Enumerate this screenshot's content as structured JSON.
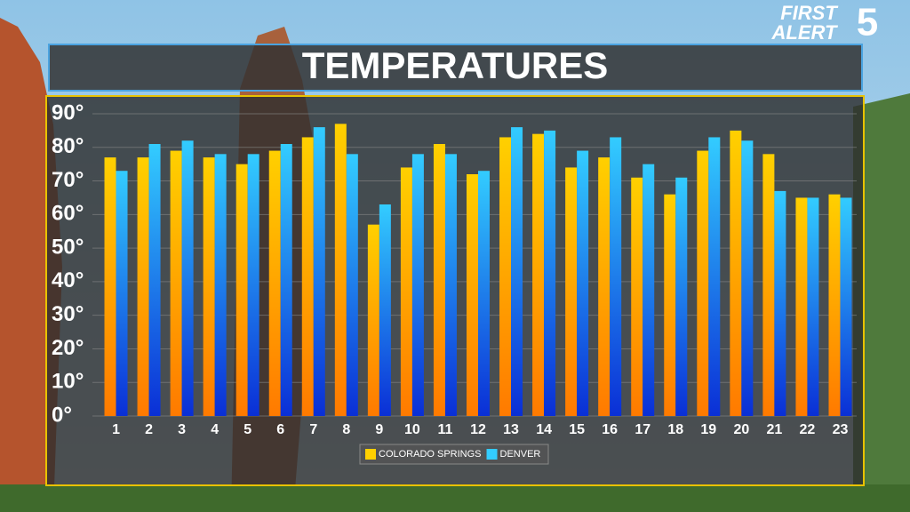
{
  "chart_data": {
    "type": "bar",
    "title": "TEMPERATURES",
    "categories": [
      "1",
      "2",
      "3",
      "4",
      "5",
      "6",
      "7",
      "8",
      "9",
      "10",
      "11",
      "12",
      "13",
      "14",
      "15",
      "16",
      "17",
      "18",
      "19",
      "20",
      "21",
      "22",
      "23"
    ],
    "series": [
      {
        "name": "COLORADO SPRINGS",
        "color": "#ffd000",
        "values": [
          77,
          77,
          79,
          77,
          75,
          79,
          83,
          87,
          57,
          74,
          81,
          72,
          83,
          84,
          74,
          77,
          71,
          66,
          79,
          85,
          78,
          65,
          66
        ]
      },
      {
        "name": "DENVER",
        "color": "#33ccff",
        "values": [
          73,
          81,
          82,
          78,
          78,
          81,
          86,
          78,
          63,
          78,
          78,
          73,
          86,
          85,
          79,
          83,
          75,
          71,
          83,
          82,
          67,
          65,
          65
        ]
      }
    ],
    "ylim": [
      0,
      90
    ],
    "yticks": [
      {
        "value": 0,
        "label": "0°"
      },
      {
        "value": 10,
        "label": "10°"
      },
      {
        "value": 20,
        "label": "20°"
      },
      {
        "value": 30,
        "label": "30°"
      },
      {
        "value": 40,
        "label": "40°"
      },
      {
        "value": 50,
        "label": "50°"
      },
      {
        "value": 60,
        "label": "60°"
      },
      {
        "value": 70,
        "label": "70°"
      },
      {
        "value": 80,
        "label": "80°"
      },
      {
        "value": 90,
        "label": "90°"
      }
    ],
    "grid": true
  },
  "logo": {
    "line1": "FIRST",
    "line2": "ALERT",
    "channel": "5"
  }
}
